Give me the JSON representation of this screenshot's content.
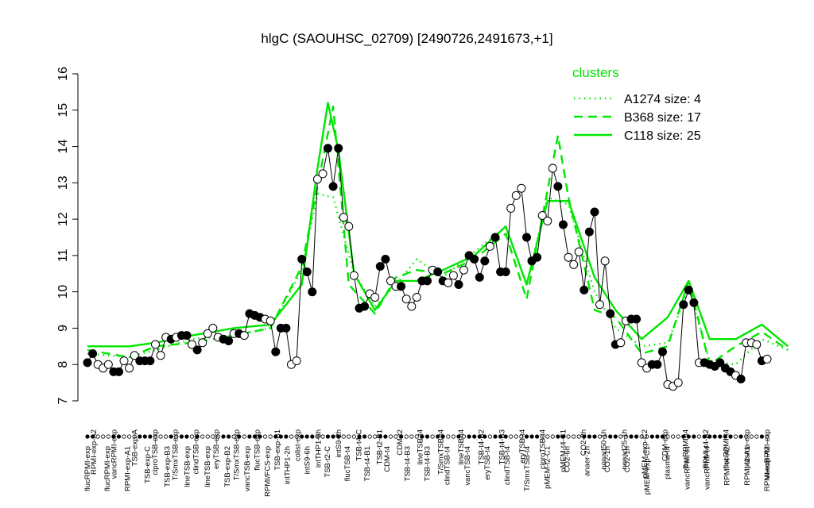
{
  "chart_data": {
    "type": "line",
    "title": "hlgC (SAOUHSC_02709) [2490726,2491673,+1]",
    "xlabel": "",
    "ylabel": "",
    "ylim": [
      7,
      16
    ],
    "yticks": [
      7,
      8,
      9,
      10,
      11,
      12,
      13,
      14,
      15,
      16
    ],
    "grid": false,
    "legend": {
      "title": "clusters",
      "position": "top-right",
      "color": "#00e600",
      "entries": [
        {
          "label": "A1274 size: 4",
          "style": "dotted"
        },
        {
          "label": "B368 size: 17",
          "style": "dashed"
        },
        {
          "label": "C118 size: 25",
          "style": "solid"
        }
      ]
    },
    "tick_labels_top": [
      "RPMI-exp-A2",
      "vancRPMI-exp",
      "TSB-exp-A",
      "ciproTSB-exp",
      "T/SmxTSB-exp",
      "clindTSB-exp",
      "eryTSB-exp",
      "T/SmxTSB-exp",
      "flucTSB-exp",
      "TSB-exp-B1",
      "colist-exp",
      "intTHP1-6h",
      "intS9-2h",
      "TSB-t4-C",
      "TSB-t2-B1",
      "CDM-t2",
      "lineTSB-t4",
      "T/SmxTSB-t4",
      "lineTSB-t4",
      "TSB-t4-B2",
      "TSB-t4-B3",
      "eryTSB-t4",
      "ciproTSB-t4",
      "pMEM-t4-C1",
      "CO2-2h",
      "nonad50-1h",
      "nonad25-1h",
      "pMEM-exp-C2",
      "CDM-exp",
      "flucRPMI-t4",
      "RPMI-t4-A2",
      "flucRPMI-t4",
      "plasma-exp",
      "vancRPMI-exp"
    ],
    "tick_labels_bottom": [
      "flucRPMI-exp",
      "flucRPMI-exp",
      "RPMI-exp-A1",
      "TSB-exp-C",
      "TSB-exp-B3",
      "lineTSB-exp",
      "lineTSB-exp",
      "TSB-exp-B2",
      "vancTSB-exp",
      "RPMI/FCS-exp",
      "intTHP1-2h",
      "intS9-6h",
      "TSB-t2-C",
      "flucTSB-t4",
      "TSB-t4-B1",
      "CDM-t4",
      "TSB-t4-B3",
      "TSB-t4-B3",
      "clindTSB-t4",
      "vancTSB-t4",
      "eryTSB-t4",
      "clindTSB-t4",
      "T/SmxTSB-t4",
      "pMEM-t2-C1",
      "CO2-6h",
      "anaer-2h",
      "CO2-1h",
      "CO2-1h",
      "pMEM-exp-C1",
      "plasma-t4",
      "vancRPMI-t4",
      "vancRPMI-t4",
      "RPMI-t4-A2",
      "RPMI-t2-A1",
      "RPMI-exp-A2"
    ],
    "samples": [
      {
        "label": "flucRPMI-exp",
        "value": 8.05,
        "open": false
      },
      {
        "label": "RPMI-exp-A2",
        "value": 8.3,
        "open": false
      },
      {
        "label": "flucRPMI-exp",
        "value": 8.0,
        "open": true
      },
      {
        "label": "vancRPMI-exp",
        "value": 7.9,
        "open": true
      },
      {
        "label": "",
        "value": 8.0,
        "open": true
      },
      {
        "label": "RPMI-exp-A1",
        "value": 7.8,
        "open": false
      },
      {
        "label": "",
        "value": 7.8,
        "open": false
      },
      {
        "label": "TSB-exp-A",
        "value": 8.1,
        "open": true
      },
      {
        "label": "",
        "value": 7.9,
        "open": true
      },
      {
        "label": "",
        "value": 8.25,
        "open": true
      },
      {
        "label": "TSB-exp-C",
        "value": 8.1,
        "open": false
      },
      {
        "label": "",
        "value": 8.1,
        "open": false
      },
      {
        "label": "",
        "value": 8.1,
        "open": false
      },
      {
        "label": "ciproTSB-exp",
        "value": 8.55,
        "open": true
      },
      {
        "label": "",
        "value": 8.25,
        "open": true
      },
      {
        "label": "",
        "value": 8.75,
        "open": true
      },
      {
        "label": "TSB-exp-B3",
        "value": 8.7,
        "open": false
      },
      {
        "label": "T/SmxTSB-exp",
        "value": 8.75,
        "open": true
      },
      {
        "label": "lineTSB-exp",
        "value": 8.8,
        "open": false
      },
      {
        "label": "clindTSB-exp",
        "value": 8.8,
        "open": false
      },
      {
        "label": "",
        "value": 8.55,
        "open": true
      },
      {
        "label": "lineTSB-exp",
        "value": 8.4,
        "open": false
      },
      {
        "label": "eryTSB-exp",
        "value": 8.6,
        "open": true
      },
      {
        "label": "",
        "value": 8.85,
        "open": true
      },
      {
        "label": "",
        "value": 9.0,
        "open": true
      },
      {
        "label": "",
        "value": 8.75,
        "open": true
      },
      {
        "label": "T/SmxTSB-exp",
        "value": 8.7,
        "open": false
      },
      {
        "label": "",
        "value": 8.65,
        "open": false
      },
      {
        "label": "TSB-exp-B2",
        "value": 8.85,
        "open": true
      },
      {
        "label": "",
        "value": 8.85,
        "open": false
      },
      {
        "label": "flucTSB-exp",
        "value": 8.8,
        "open": true
      },
      {
        "label": "vancTSB-exp",
        "value": 9.4,
        "open": false
      },
      {
        "label": "",
        "value": 9.35,
        "open": false
      },
      {
        "label": "",
        "value": 9.3,
        "open": false
      },
      {
        "label": "TSB-exp-B1",
        "value": 9.25,
        "open": true
      },
      {
        "label": "",
        "value": 9.2,
        "open": true
      },
      {
        "label": "RPMI/FCS-exp",
        "value": 8.35,
        "open": false
      },
      {
        "label": "",
        "value": 9.0,
        "open": false
      },
      {
        "label": "",
        "value": 9.0,
        "open": false
      },
      {
        "label": "colist-exp",
        "value": 8.0,
        "open": true
      },
      {
        "label": "",
        "value": 8.1,
        "open": true
      },
      {
        "label": "intTHP1-2h",
        "value": 10.9,
        "open": false
      },
      {
        "label": "",
        "value": 10.55,
        "open": false
      },
      {
        "label": "",
        "value": 10.0,
        "open": false
      },
      {
        "label": "intTHP1-6h",
        "value": 13.1,
        "open": true
      },
      {
        "label": "",
        "value": 13.25,
        "open": true
      },
      {
        "label": "intS9-6h",
        "value": 13.95,
        "open": false
      },
      {
        "label": "",
        "value": 12.9,
        "open": false
      },
      {
        "label": "",
        "value": 13.95,
        "open": false
      },
      {
        "label": "intS9-2h",
        "value": 12.05,
        "open": true
      },
      {
        "label": "",
        "value": 11.8,
        "open": true
      },
      {
        "label": "",
        "value": 10.45,
        "open": true
      },
      {
        "label": "TSB-t2-C",
        "value": 9.55,
        "open": false
      },
      {
        "label": "",
        "value": 9.6,
        "open": false
      },
      {
        "label": "TSB-t4-C",
        "value": 9.95,
        "open": true
      },
      {
        "label": "",
        "value": 9.85,
        "open": true
      },
      {
        "label": "flucTSB-t4",
        "value": 10.7,
        "open": false
      },
      {
        "label": "",
        "value": 10.9,
        "open": false
      },
      {
        "label": "TSB-t2-B1",
        "value": 10.3,
        "open": true
      },
      {
        "label": "",
        "value": 10.15,
        "open": true
      },
      {
        "label": "TSB-t4-B1",
        "value": 10.15,
        "open": false
      },
      {
        "label": "",
        "value": 9.8,
        "open": true
      },
      {
        "label": "CDM-t2",
        "value": 9.6,
        "open": true
      },
      {
        "label": "",
        "value": 9.85,
        "open": true
      },
      {
        "label": "CDM-t4",
        "value": 10.3,
        "open": false
      },
      {
        "label": "",
        "value": 10.3,
        "open": false
      },
      {
        "label": "lineTSB-t4",
        "value": 10.6,
        "open": true
      },
      {
        "label": "T/SmxTSB-t4",
        "value": 10.55,
        "open": false
      },
      {
        "label": "TSB-t4-B3",
        "value": 10.3,
        "open": false
      },
      {
        "label": "lineTSB-t4",
        "value": 10.25,
        "open": true
      },
      {
        "label": "TSB-t4-B3",
        "value": 10.45,
        "open": true
      },
      {
        "label": "clindTSB-t4",
        "value": 10.2,
        "open": false
      },
      {
        "label": "TSB-t4-B2",
        "value": 10.6,
        "open": true
      },
      {
        "label": "vancTSB-t4",
        "value": 11.0,
        "open": false
      },
      {
        "label": "",
        "value": 10.9,
        "open": false
      },
      {
        "label": "eryTSB-t4",
        "value": 10.4,
        "open": false
      },
      {
        "label": "TSB-t4-B3",
        "value": 10.85,
        "open": false
      },
      {
        "label": "",
        "value": 11.25,
        "open": true
      },
      {
        "label": "clindTSB-t4",
        "value": 11.5,
        "open": false
      },
      {
        "label": "eryTSB-t4",
        "value": 10.55,
        "open": false
      },
      {
        "label": "T/SmxTSB-t4",
        "value": 10.55,
        "open": false
      },
      {
        "label": "ciproTSB-t4",
        "value": 12.3,
        "open": true
      },
      {
        "label": "",
        "value": 12.65,
        "open": true
      },
      {
        "label": "",
        "value": 12.85,
        "open": true
      },
      {
        "label": "",
        "value": 11.5,
        "open": false
      },
      {
        "label": "pMEM-t2-C1",
        "value": 10.85,
        "open": false
      },
      {
        "label": "",
        "value": 10.95,
        "open": false
      },
      {
        "label": "pMEM-t4-C1",
        "value": 12.1,
        "open": true
      },
      {
        "label": "",
        "value": 11.95,
        "open": true
      },
      {
        "label": "",
        "value": 13.4,
        "open": true
      },
      {
        "label": "CO2-6h",
        "value": 12.9,
        "open": false
      },
      {
        "label": "",
        "value": 11.85,
        "open": false
      },
      {
        "label": "CO2-2h",
        "value": 10.95,
        "open": true
      },
      {
        "label": "",
        "value": 10.75,
        "open": true
      },
      {
        "label": "",
        "value": 11.1,
        "open": true
      },
      {
        "label": "anaer-2h",
        "value": 10.05,
        "open": false
      },
      {
        "label": "",
        "value": 11.65,
        "open": false
      },
      {
        "label": "",
        "value": 12.2,
        "open": false
      },
      {
        "label": "nonad50-1h",
        "value": 9.65,
        "open": true
      },
      {
        "label": "",
        "value": 10.85,
        "open": true
      },
      {
        "label": "CO2-1h",
        "value": 9.4,
        "open": false
      },
      {
        "label": "",
        "value": 8.55,
        "open": false
      },
      {
        "label": "nonad25-1h",
        "value": 8.6,
        "open": true
      },
      {
        "label": "",
        "value": 9.2,
        "open": true
      },
      {
        "label": "CO2-1h",
        "value": 9.25,
        "open": false
      },
      {
        "label": "",
        "value": 9.25,
        "open": false
      },
      {
        "label": "pMEM-exp-C2",
        "value": 8.05,
        "open": true
      },
      {
        "label": "",
        "value": 7.9,
        "open": true
      },
      {
        "label": "pMEM-exp-C1",
        "value": 8.0,
        "open": false
      },
      {
        "label": "",
        "value": 8.0,
        "open": false
      },
      {
        "label": "",
        "value": 8.35,
        "open": false
      },
      {
        "label": "CDM-exp",
        "value": 7.45,
        "open": true
      },
      {
        "label": "",
        "value": 7.4,
        "open": true
      },
      {
        "label": "",
        "value": 7.5,
        "open": true
      },
      {
        "label": "plasma-t4",
        "value": 9.65,
        "open": false
      },
      {
        "label": "",
        "value": 10.05,
        "open": false
      },
      {
        "label": "",
        "value": 9.7,
        "open": false
      },
      {
        "label": "flucRPMI-t4",
        "value": 8.05,
        "open": true
      },
      {
        "label": "vancRPMI-t4",
        "value": 8.05,
        "open": false
      },
      {
        "label": "RPMI-t4-A2",
        "value": 8.0,
        "open": false
      },
      {
        "label": "vancRPMI-t4",
        "value": 7.95,
        "open": false
      },
      {
        "label": "",
        "value": 8.05,
        "open": false
      },
      {
        "label": "flucRPMI-t4",
        "value": 7.9,
        "open": false
      },
      {
        "label": "RPMI-t4-A2",
        "value": 7.8,
        "open": false
      },
      {
        "label": "",
        "value": 7.7,
        "open": true
      },
      {
        "label": "RPMI-t2-A1",
        "value": 7.6,
        "open": false
      },
      {
        "label": "plasma-exp",
        "value": 8.6,
        "open": true
      },
      {
        "label": "",
        "value": 8.6,
        "open": true
      },
      {
        "label": "",
        "value": 8.55,
        "open": true
      },
      {
        "label": "RPMI-exp-A2",
        "value": 8.1,
        "open": false
      },
      {
        "label": "vancRPMI-exp",
        "value": 8.15,
        "open": true
      }
    ],
    "series": [
      {
        "name": "A1274 size: 4",
        "style": "dotted",
        "x": [
          0,
          8,
          13,
          20,
          28,
          35,
          41,
          44,
          47,
          51,
          55,
          59,
          63,
          68,
          74,
          80,
          84,
          88,
          92,
          97,
          101,
          106,
          111,
          115,
          119,
          124,
          129,
          134
        ],
        "values": [
          8.3,
          8.2,
          8.4,
          8.7,
          8.8,
          9.0,
          10.6,
          12.7,
          12.6,
          10.5,
          9.6,
          10.2,
          10.9,
          10.4,
          11.1,
          11.8,
          10.2,
          12.6,
          12.4,
          10.0,
          9.0,
          8.5,
          8.6,
          10.1,
          8.1,
          8.0,
          8.7,
          8.4
        ]
      },
      {
        "name": "B368 size: 17",
        "style": "dashed",
        "x": [
          0,
          8,
          13,
          20,
          28,
          35,
          41,
          44,
          47,
          50,
          55,
          59,
          63,
          68,
          74,
          80,
          84,
          88,
          90,
          92,
          97,
          101,
          106,
          111,
          115,
          119,
          124,
          129,
          134
        ],
        "values": [
          8.4,
          8.2,
          8.5,
          8.6,
          8.8,
          9.0,
          10.7,
          12.9,
          15.1,
          10.2,
          9.4,
          10.4,
          10.6,
          10.5,
          10.9,
          11.6,
          9.8,
          12.8,
          14.3,
          12.6,
          9.5,
          9.3,
          8.3,
          8.5,
          10.3,
          8.0,
          8.5,
          8.9,
          8.4
        ]
      },
      {
        "name": "C118 size: 25",
        "style": "solid",
        "x": [
          0,
          8,
          13,
          20,
          28,
          35,
          41,
          44,
          46,
          48,
          51,
          55,
          59,
          63,
          68,
          74,
          80,
          84,
          88,
          92,
          97,
          101,
          106,
          111,
          115,
          119,
          124,
          129,
          134
        ],
        "values": [
          8.5,
          8.5,
          8.6,
          8.8,
          9.0,
          9.1,
          10.2,
          13.4,
          15.2,
          13.9,
          10.5,
          9.5,
          10.3,
          10.3,
          10.6,
          11.0,
          11.8,
          10.2,
          12.5,
          12.5,
          10.4,
          9.5,
          8.7,
          9.3,
          10.3,
          8.7,
          8.7,
          9.1,
          8.5
        ]
      }
    ]
  }
}
